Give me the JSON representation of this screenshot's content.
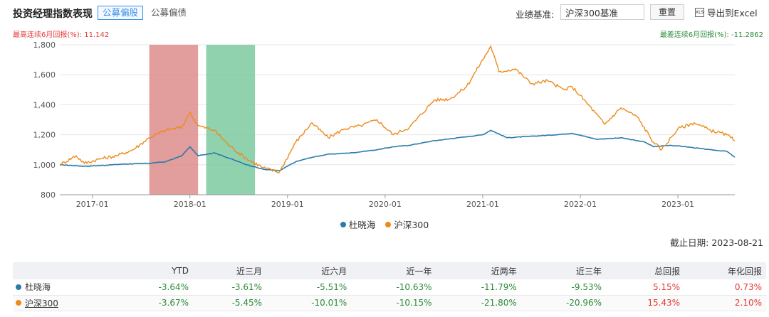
{
  "header": {
    "title": "投资经理指数表现",
    "tabs": [
      "公募偏股",
      "公募偏债"
    ],
    "benchmark_label": "业绩基准:",
    "benchmark_value": "沪深300基准",
    "reset_label": "重置",
    "export_label": "导出到Excel"
  },
  "info": {
    "max_label": "最高连续6月回报(%):  11.142",
    "min_label": "最差连续6月回报(%):  -11.2862"
  },
  "colors": {
    "manager": "#2a7bab",
    "index": "#ee8a1c",
    "red_band": "#dd8c8c",
    "green_band": "#7cc9a0"
  },
  "chart_data": {
    "type": "line",
    "x_ticks": [
      "2017-01",
      "2018-01",
      "2019-01",
      "2020-01",
      "2021-01",
      "2022-01",
      "2023-01"
    ],
    "ylim": [
      800,
      1800
    ],
    "y_ticks": [
      "800",
      "1,000",
      "1,200",
      "1,400",
      "1,600",
      "1,800"
    ],
    "x_range": [
      "2016-09",
      "2023-08"
    ],
    "highlight_bands": [
      {
        "color": "red",
        "start": "2017-08",
        "end": "2018-02"
      },
      {
        "color": "green",
        "start": "2018-03",
        "end": "2018-09"
      }
    ],
    "series": [
      {
        "name": "杜晓海",
        "points": [
          [
            "2016-09",
            1000
          ],
          [
            "2016-12",
            990
          ],
          [
            "2017-02",
            995
          ],
          [
            "2017-05",
            1005
          ],
          [
            "2017-08",
            1010
          ],
          [
            "2017-10",
            1020
          ],
          [
            "2017-12",
            1060
          ],
          [
            "2018-01",
            1120
          ],
          [
            "2018-02",
            1060
          ],
          [
            "2018-04",
            1080
          ],
          [
            "2018-06",
            1040
          ],
          [
            "2018-08",
            1000
          ],
          [
            "2018-10",
            970
          ],
          [
            "2018-12",
            960
          ],
          [
            "2019-02",
            1020
          ],
          [
            "2019-04",
            1050
          ],
          [
            "2019-06",
            1070
          ],
          [
            "2019-09",
            1080
          ],
          [
            "2019-12",
            1100
          ],
          [
            "2020-02",
            1120
          ],
          [
            "2020-04",
            1130
          ],
          [
            "2020-07",
            1160
          ],
          [
            "2020-10",
            1180
          ],
          [
            "2021-01",
            1200
          ],
          [
            "2021-02",
            1230
          ],
          [
            "2021-04",
            1180
          ],
          [
            "2021-07",
            1190
          ],
          [
            "2021-10",
            1200
          ],
          [
            "2021-12",
            1210
          ],
          [
            "2022-03",
            1170
          ],
          [
            "2022-06",
            1180
          ],
          [
            "2022-09",
            1150
          ],
          [
            "2022-10",
            1120
          ],
          [
            "2022-12",
            1130
          ],
          [
            "2023-02",
            1120
          ],
          [
            "2023-05",
            1100
          ],
          [
            "2023-07",
            1090
          ],
          [
            "2023-08",
            1050
          ]
        ]
      },
      {
        "name": "沪深300",
        "points": [
          [
            "2016-09",
            1000
          ],
          [
            "2016-11",
            1060
          ],
          [
            "2016-12",
            1010
          ],
          [
            "2017-02",
            1040
          ],
          [
            "2017-04",
            1060
          ],
          [
            "2017-06",
            1100
          ],
          [
            "2017-08",
            1180
          ],
          [
            "2017-10",
            1230
          ],
          [
            "2017-12",
            1250
          ],
          [
            "2018-01",
            1350
          ],
          [
            "2018-02",
            1260
          ],
          [
            "2018-04",
            1230
          ],
          [
            "2018-06",
            1120
          ],
          [
            "2018-08",
            1040
          ],
          [
            "2018-10",
            980
          ],
          [
            "2018-12",
            950
          ],
          [
            "2019-02",
            1150
          ],
          [
            "2019-04",
            1280
          ],
          [
            "2019-06",
            1180
          ],
          [
            "2019-08",
            1240
          ],
          [
            "2019-10",
            1260
          ],
          [
            "2019-12",
            1300
          ],
          [
            "2020-02",
            1200
          ],
          [
            "2020-04",
            1250
          ],
          [
            "2020-07",
            1430
          ],
          [
            "2020-09",
            1440
          ],
          [
            "2020-11",
            1520
          ],
          [
            "2021-01",
            1700
          ],
          [
            "2021-02",
            1790
          ],
          [
            "2021-03",
            1620
          ],
          [
            "2021-05",
            1640
          ],
          [
            "2021-07",
            1540
          ],
          [
            "2021-09",
            1560
          ],
          [
            "2021-11",
            1500
          ],
          [
            "2021-12",
            1520
          ],
          [
            "2022-02",
            1400
          ],
          [
            "2022-04",
            1270
          ],
          [
            "2022-06",
            1380
          ],
          [
            "2022-08",
            1320
          ],
          [
            "2022-10",
            1150
          ],
          [
            "2022-11",
            1100
          ],
          [
            "2023-01",
            1240
          ],
          [
            "2023-03",
            1280
          ],
          [
            "2023-05",
            1230
          ],
          [
            "2023-07",
            1200
          ],
          [
            "2023-08",
            1160
          ]
        ]
      }
    ]
  },
  "cutoff": "截止日期:  2023-08-21",
  "table": {
    "headers": [
      "",
      "YTD",
      "近三月",
      "近六月",
      "近一年",
      "近两年",
      "近三年",
      "总回报",
      "年化回报"
    ],
    "rows": [
      {
        "name": "杜晓海",
        "values": [
          "-3.64%",
          "-3.61%",
          "-5.51%",
          "-10.63%",
          "-11.79%",
          "-9.53%",
          "5.15%",
          "0.73%"
        ]
      },
      {
        "name": "沪深300",
        "values": [
          "-3.67%",
          "-5.45%",
          "-10.01%",
          "-10.15%",
          "-21.80%",
          "-20.96%",
          "15.43%",
          "2.10%"
        ]
      }
    ]
  }
}
